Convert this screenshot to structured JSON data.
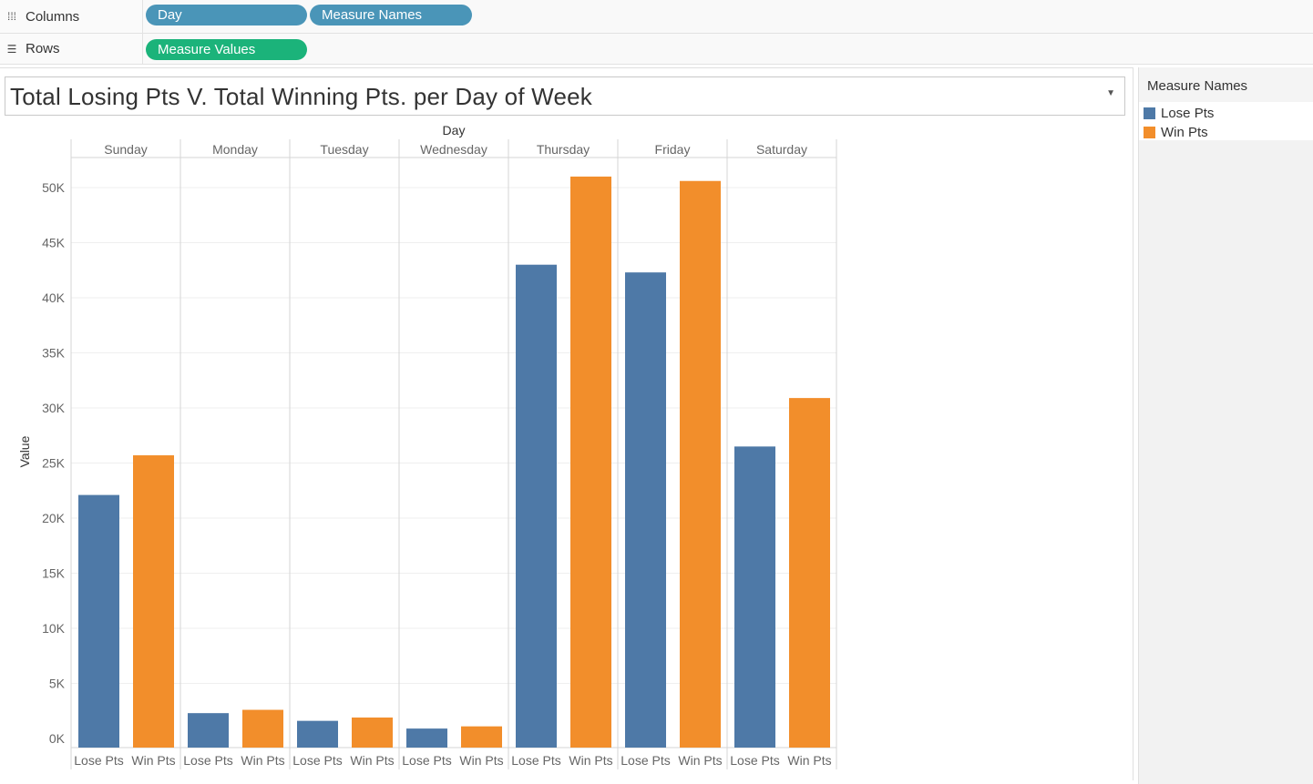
{
  "shelves": {
    "columns": {
      "label": "Columns",
      "icon": "columns-icon",
      "pills": [
        "Day",
        "Measure Names"
      ]
    },
    "rows": {
      "label": "Rows",
      "icon": "rows-icon",
      "pills": [
        "Measure Values"
      ]
    }
  },
  "worksheet": {
    "title": "Total Losing Pts V. Total Winning Pts. per Day of Week"
  },
  "legend": {
    "title": "Measure Names",
    "items": [
      {
        "label": "Lose Pts",
        "color": "#4e79a7"
      },
      {
        "label": "Win Pts",
        "color": "#f28e2b"
      }
    ]
  },
  "chart_data": {
    "type": "bar",
    "xlabel": "Day",
    "ylabel": "Value",
    "categories": [
      "Sunday",
      "Monday",
      "Tuesday",
      "Wednesday",
      "Thursday",
      "Friday",
      "Saturday"
    ],
    "sub_categories": [
      "Lose Pts",
      "Win Pts"
    ],
    "series": [
      {
        "name": "Lose Pts",
        "color": "#4e79a7",
        "values": [
          22100,
          2300,
          1600,
          900,
          43000,
          42300,
          26500
        ]
      },
      {
        "name": "Win Pts",
        "color": "#f28e2b",
        "values": [
          25700,
          2600,
          1900,
          1100,
          51000,
          50600,
          30900
        ]
      }
    ],
    "y_ticks": [
      "0K",
      "5K",
      "10K",
      "15K",
      "20K",
      "25K",
      "30K",
      "35K",
      "40K",
      "45K",
      "50K"
    ],
    "ylim": [
      0,
      53000
    ],
    "grid": true,
    "legend_position": "right"
  }
}
